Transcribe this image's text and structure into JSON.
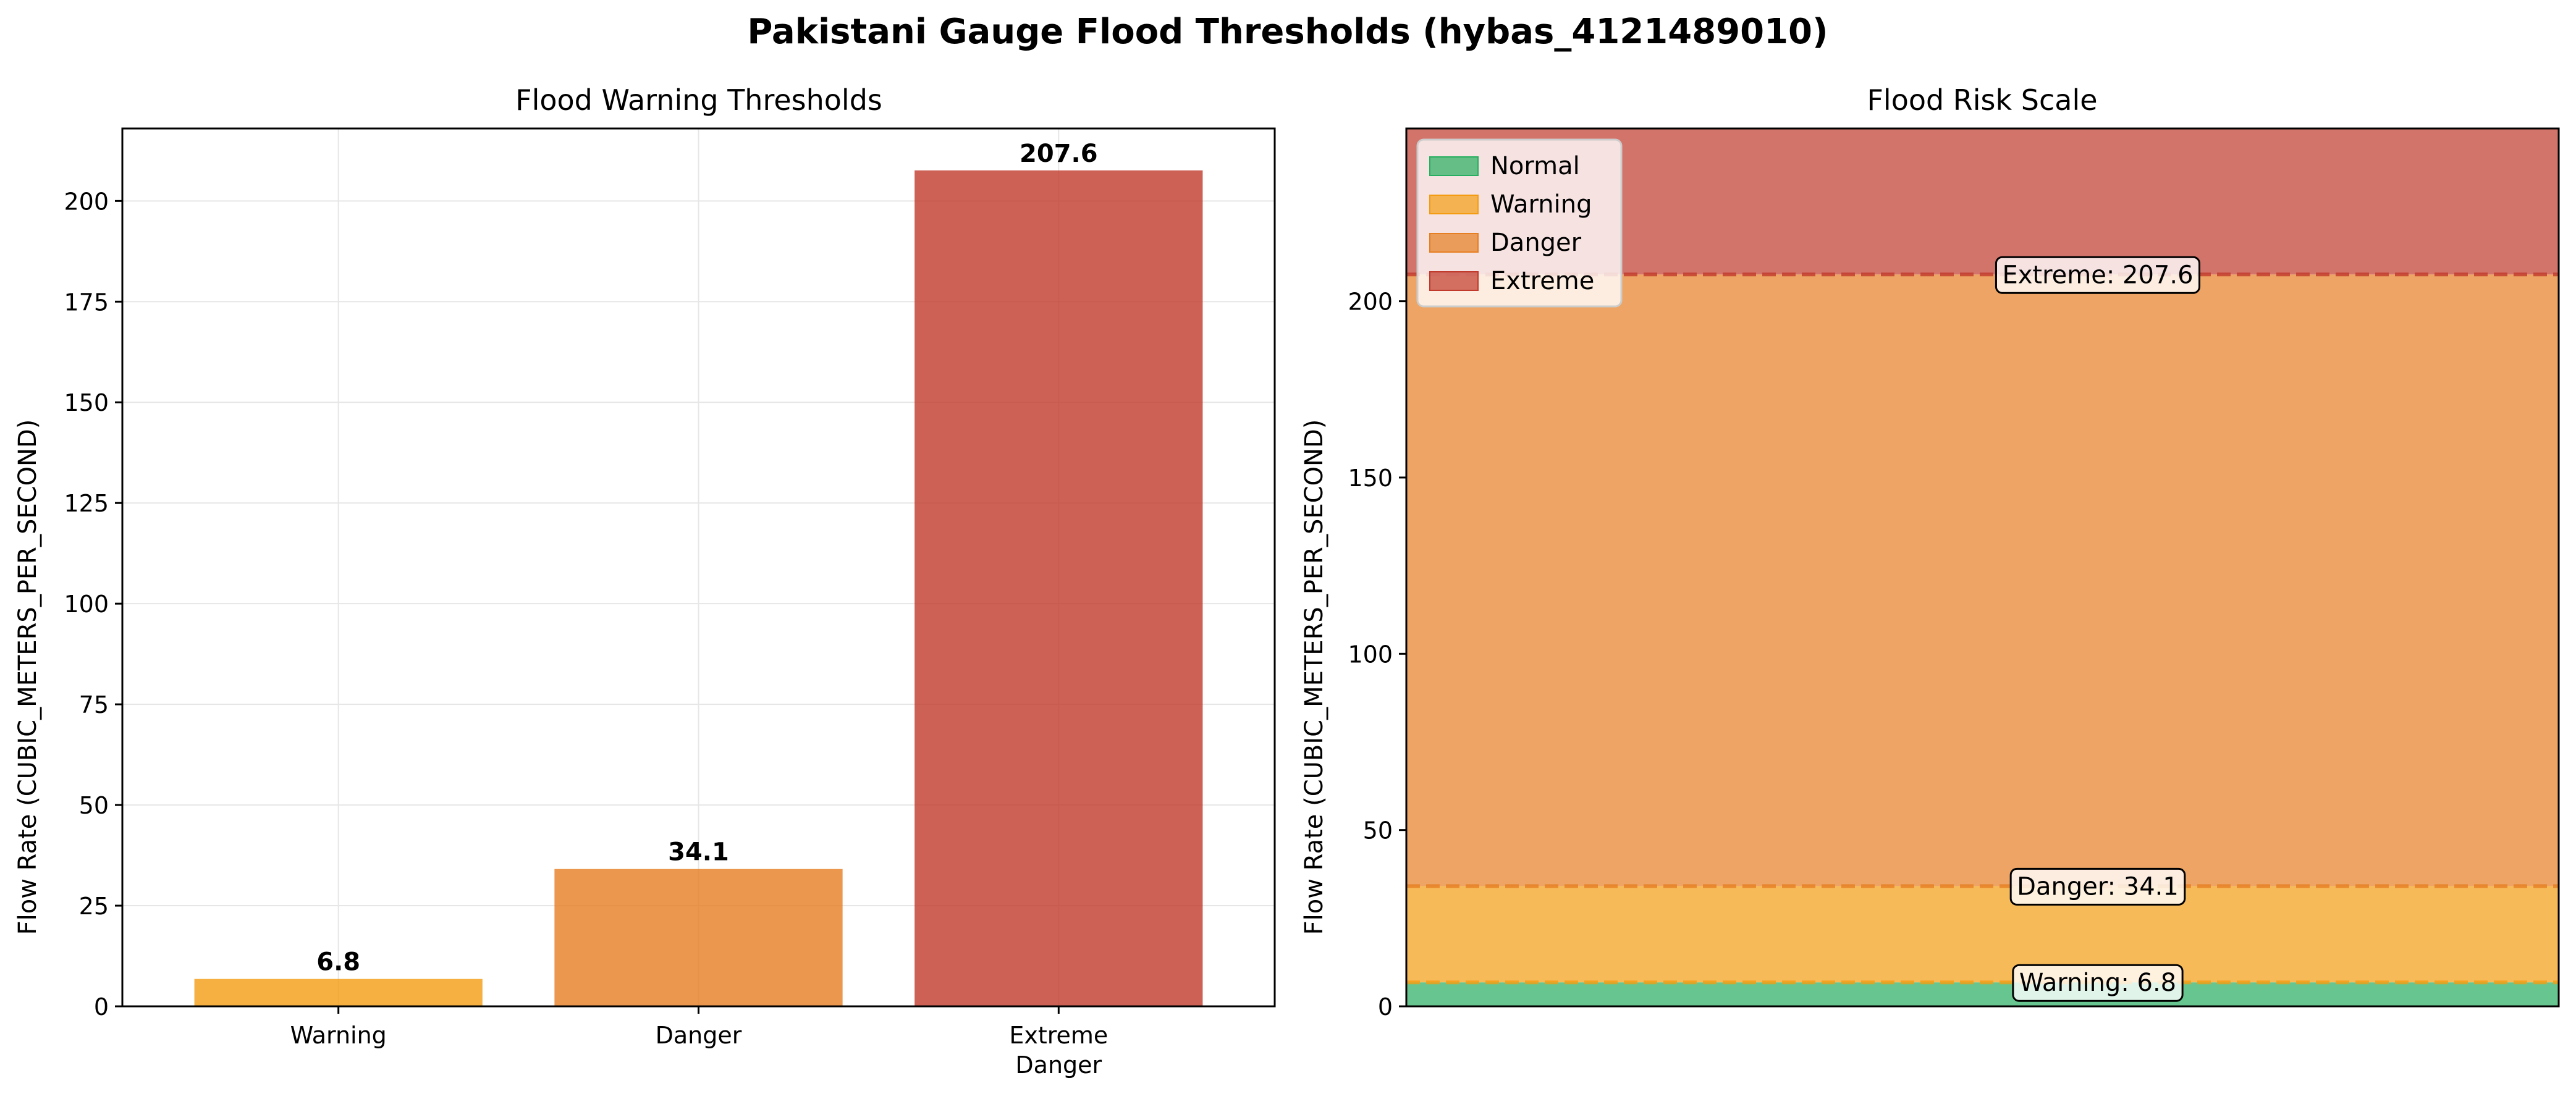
{
  "figure": {
    "suptitle": "Pakistani Gauge Flood Thresholds (hybas_4121489010)"
  },
  "chart_data": [
    {
      "type": "bar",
      "title": "Flood Warning Thresholds",
      "xlabel": "",
      "ylabel": "Flow Rate (CUBIC_METERS_PER_SECOND)",
      "categories": [
        [
          "Warning"
        ],
        [
          "Danger"
        ],
        [
          "Extreme",
          "Danger"
        ]
      ],
      "values": [
        6.8,
        34.1,
        207.6
      ],
      "value_labels": [
        "6.8",
        "34.1",
        "207.6"
      ],
      "colors": [
        "#f39c12",
        "#e67e22",
        "#c0392b"
      ],
      "ylim": [
        0,
        218
      ],
      "yticks": [
        0,
        25,
        50,
        75,
        100,
        125,
        150,
        175,
        200
      ],
      "grid": true
    },
    {
      "type": "area",
      "title": "Flood Risk Scale",
      "xlabel": "",
      "ylabel": "Flow Rate (CUBIC_METERS_PER_SECOND)",
      "ylim": [
        0,
        249
      ],
      "yticks": [
        0,
        50,
        100,
        150,
        200
      ],
      "bands": [
        {
          "name": "Normal",
          "from": 0,
          "to": 6.8,
          "color": "#27ae60"
        },
        {
          "name": "Warning",
          "from": 6.8,
          "to": 34.1,
          "color": "#f39c12"
        },
        {
          "name": "Danger",
          "from": 34.1,
          "to": 207.6,
          "color": "#e67e22"
        },
        {
          "name": "Extreme",
          "from": 207.6,
          "to": 249,
          "color": "#c0392b"
        }
      ],
      "thresholds": [
        {
          "value": 6.8,
          "label": "Warning: 6.8",
          "color": "#f39c12"
        },
        {
          "value": 34.1,
          "label": "Danger: 34.1",
          "color": "#e67e22"
        },
        {
          "value": 207.6,
          "label": "Extreme: 207.6",
          "color": "#c0392b"
        }
      ],
      "legend": {
        "placement": "upper-left",
        "entries": [
          "Normal",
          "Warning",
          "Danger",
          "Extreme"
        ]
      }
    }
  ]
}
